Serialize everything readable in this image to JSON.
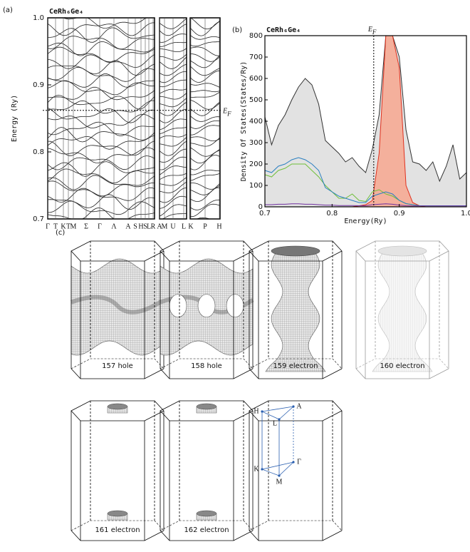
{
  "panel_labels": [
    "(a)",
    "(b)",
    "(c)"
  ],
  "chart_data": [
    {
      "type": "band",
      "title": "CeRh₆Ge₄",
      "y_label": "Energy (Ry)",
      "ylim": [
        0.7,
        1.0
      ],
      "yticks": [
        0.7,
        0.8,
        0.9,
        {
          "value": 1.0,
          "label": "1.0"
        }
      ],
      "fermi_level": 0.862,
      "fermi_label": {
        "main": "E",
        "sub": "F"
      },
      "k_labels": [
        "Γ",
        "T",
        "K",
        "T",
        "M",
        "Σ",
        "Γ",
        "Λ",
        "A",
        "S",
        "H",
        "S",
        "L",
        "R",
        "A",
        "M",
        "U",
        "L",
        "K",
        "P",
        "H"
      ]
    },
    {
      "type": "line",
      "title": "CeRh₆Ge₄",
      "x_label": "Energy(Ry)",
      "y_label": "Density Of States(States/Ry)",
      "xlim": [
        0.7,
        1.0
      ],
      "xticks": [
        0.7,
        0.8,
        0.9,
        {
          "value": 1.0,
          "label": "1.0"
        }
      ],
      "ylim": [
        0,
        800
      ],
      "yticks": [
        0,
        100,
        200,
        300,
        400,
        500,
        600,
        700,
        800
      ],
      "fermi_level": 0.862,
      "fermi_label": {
        "main": "E",
        "sub": "F"
      },
      "x": [
        0.7,
        0.71,
        0.72,
        0.73,
        0.74,
        0.75,
        0.76,
        0.77,
        0.78,
        0.79,
        0.8,
        0.81,
        0.82,
        0.83,
        0.84,
        0.85,
        0.86,
        0.87,
        0.88,
        0.89,
        0.9,
        0.91,
        0.92,
        0.93,
        0.94,
        0.95,
        0.96,
        0.97,
        0.98,
        0.99,
        1.0
      ],
      "series": [
        {
          "color": "#333333",
          "fill": "#e2e2e2",
          "values": [
            420,
            290,
            380,
            430,
            500,
            560,
            600,
            570,
            480,
            310,
            280,
            250,
            210,
            230,
            190,
            160,
            270,
            430,
            800,
            800,
            700,
            360,
            210,
            200,
            170,
            210,
            120,
            190,
            290,
            130,
            160
          ]
        },
        {
          "color": "#e0301e",
          "fill": "#f4b09c",
          "values": [
            0,
            0,
            0,
            0,
            0,
            0,
            0,
            0,
            0,
            0,
            0,
            0,
            0,
            0,
            5,
            10,
            30,
            250,
            800,
            800,
            650,
            100,
            20,
            5,
            0,
            0,
            0,
            0,
            0,
            0,
            0
          ]
        },
        {
          "color": "#6fbf3a",
          "values": [
            150,
            140,
            170,
            180,
            200,
            200,
            200,
            170,
            140,
            100,
            70,
            40,
            40,
            60,
            30,
            25,
            70,
            80,
            60,
            50,
            30,
            15,
            10,
            5,
            5,
            5,
            5,
            5,
            5,
            5,
            5
          ]
        },
        {
          "color": "#2a7fc0",
          "values": [
            170,
            160,
            190,
            200,
            220,
            230,
            220,
            200,
            170,
            90,
            70,
            50,
            40,
            30,
            20,
            20,
            50,
            60,
            70,
            60,
            30,
            15,
            10,
            5,
            5,
            5,
            5,
            5,
            5,
            5,
            5
          ]
        },
        {
          "color": "#7030a0",
          "values": [
            10,
            10,
            12,
            12,
            14,
            14,
            12,
            12,
            10,
            8,
            8,
            6,
            6,
            6,
            5,
            5,
            10,
            12,
            14,
            12,
            8,
            5,
            4,
            4,
            4,
            4,
            4,
            4,
            4,
            4,
            4
          ]
        }
      ]
    }
  ],
  "fermi_surfaces": [
    "157 hole",
    "158 hole",
    "159 electron",
    "160 electron",
    "161 electron",
    "162 electron"
  ],
  "bz_points": [
    "H",
    "A",
    "L",
    "K",
    "Γ",
    "M"
  ]
}
